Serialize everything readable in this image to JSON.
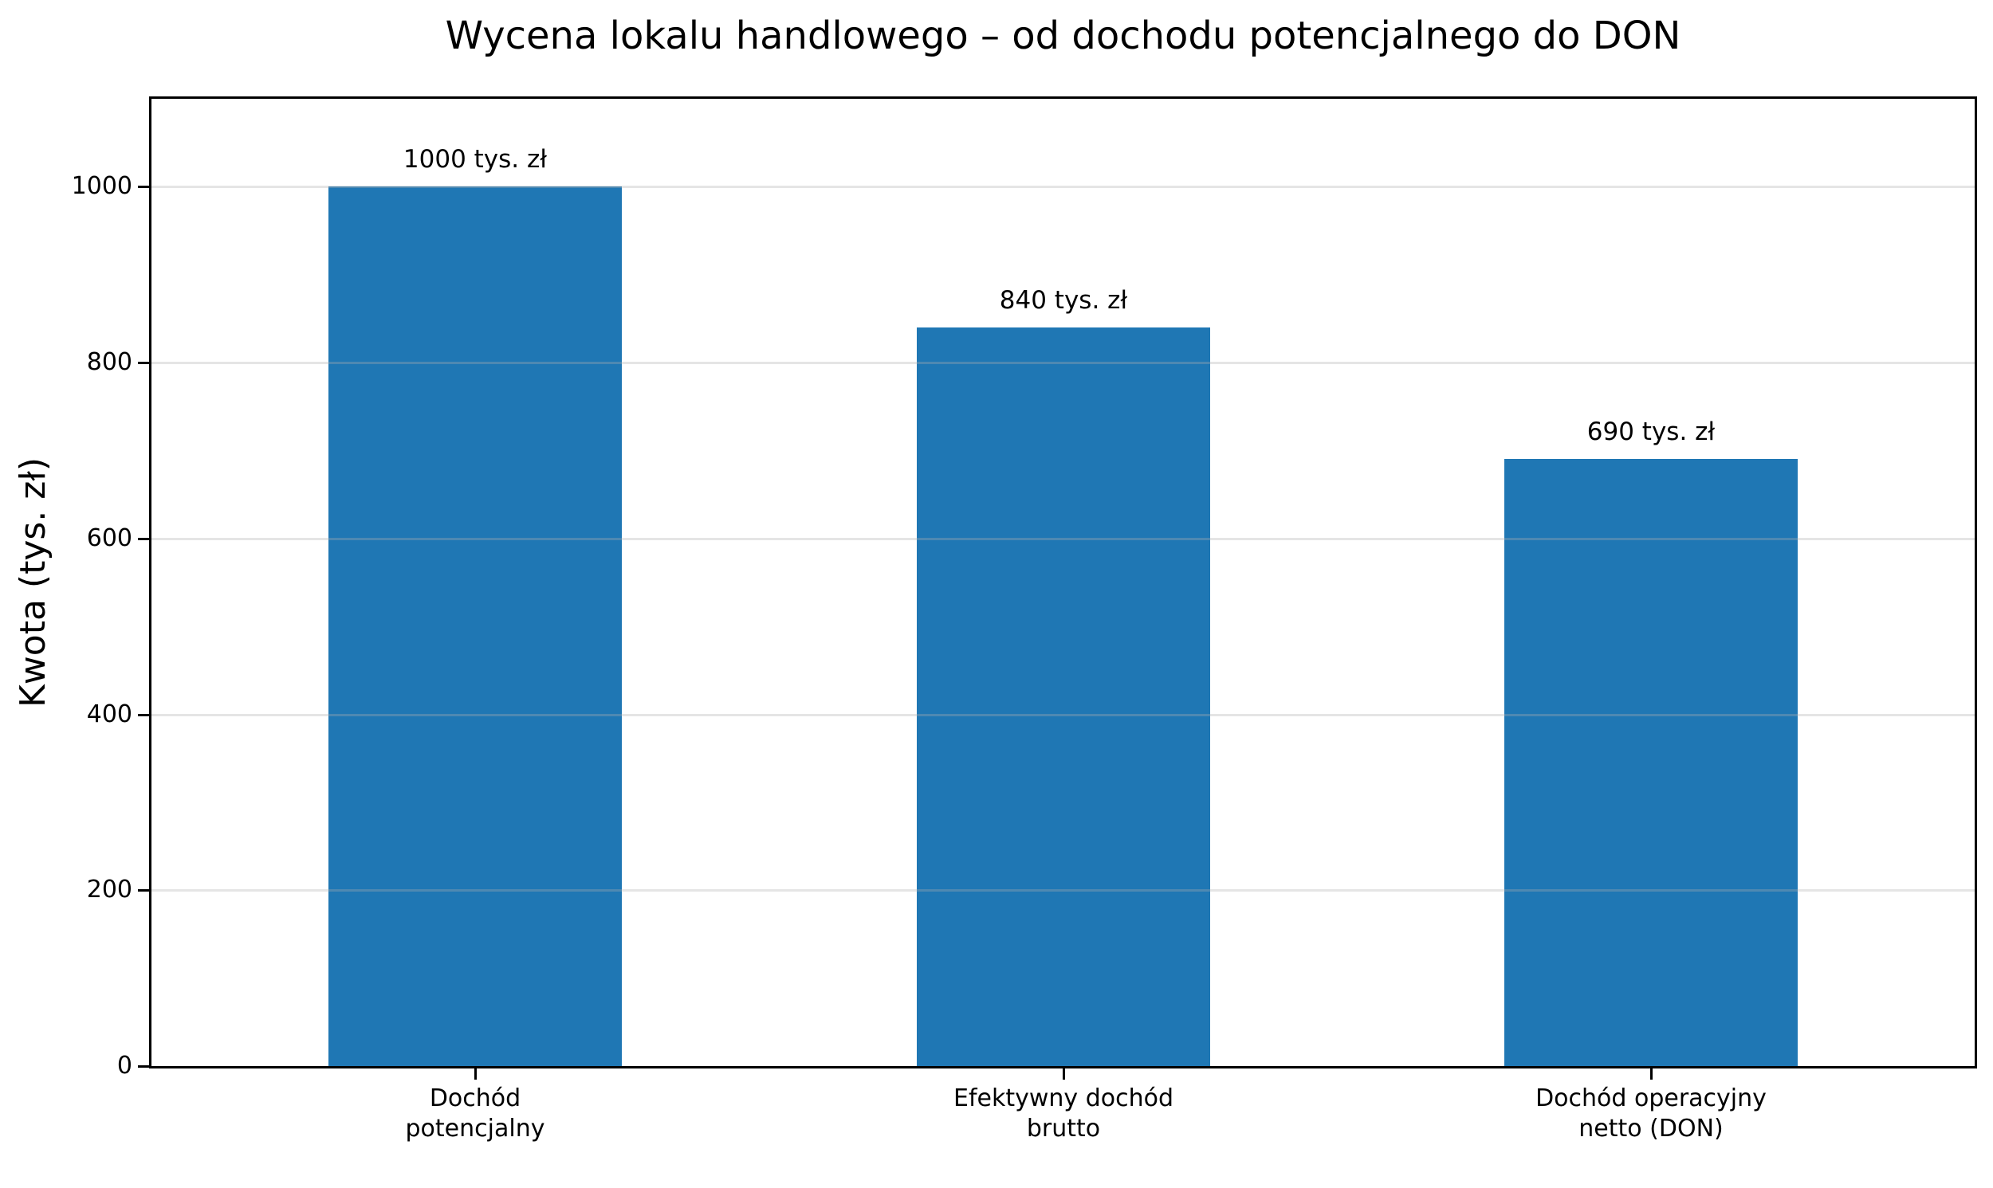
{
  "chart_data": {
    "type": "bar",
    "title": "Wycena lokalu handlowego – od dochodu potencjalnego do DON",
    "ylabel": "Kwota (tys. zł)",
    "xlabel": "",
    "categories": [
      "Dochód\npotencjalny",
      "Efektywny dochód\nbrutto",
      "Dochód operacyjny\nnetto (DON)"
    ],
    "values": [
      1000,
      840,
      690
    ],
    "bar_labels": [
      "1000 tys. zł",
      "840 tys. zł",
      "690 tys. zł"
    ],
    "yticks": [
      0,
      200,
      400,
      600,
      800,
      1000
    ],
    "ylim": [
      0,
      1100
    ],
    "grid": {
      "axis": "y",
      "drawn_above_bars": true
    },
    "legend": null,
    "colors": {
      "bar": "#1f77b4",
      "grid": "#b0b0b0",
      "spine": "#000000",
      "text": "#000000",
      "background": "#ffffff"
    }
  }
}
